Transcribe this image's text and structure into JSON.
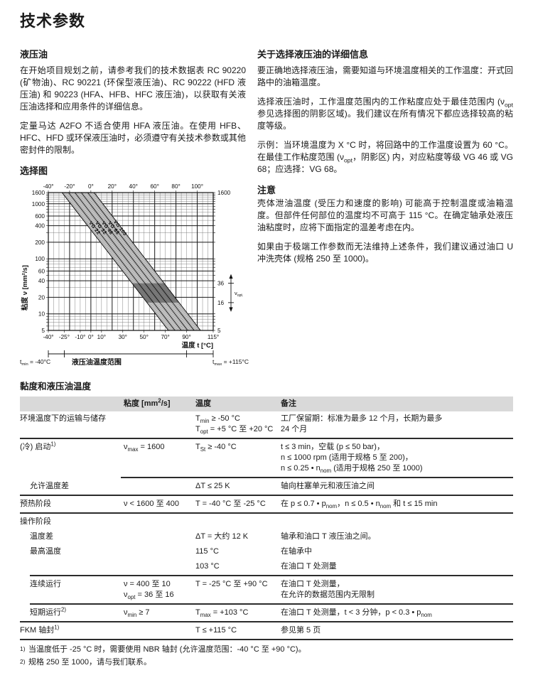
{
  "page": {
    "title": "技术参数"
  },
  "left": {
    "heading": "液压油",
    "para1": "在开始项目规划之前，请参考我们的技术数据表 RC 90220 (矿物油)、RC 90221 (环保型液压油)、RC 90222 (HFD 液压油) 和 90223 (HFA、HFB、HFC 液压油)，以获取有关液压油选择和应用条件的详细信息。",
    "para2": "定量马达 A2FO 不适合使用 HFA 液压油。在使用 HFB、HFC、HFD 或环保液压油时，必须遵守有关技术参数或其他密封件的限制。",
    "chart_heading": "选择图"
  },
  "right": {
    "heading": "关于选择液压油的详细信息",
    "para1": "要正确地选择液压油，需要知道与环境温度相关的工作温度：开式回路中的油箱温度。",
    "para2": "选择液压油时，工作温度范围内的工作粘度应处于最佳范围内 (ν~opt~ 参见选择图的阴影区域)。我们建议在所有情况下都应选择较高的粘度等级。",
    "para3": "示例：当环境温度为 X °C 时，将回路中的工作温度设置为 60 °C。在最佳工作粘度范围 (ν~opt~，阴影区) 内，对应粘度等级 VG 46 或 VG 68；应选择：VG 68。",
    "note_heading": "注意",
    "note1": "壳体泄油温度 (受压力和速度的影响) 可能高于控制温度或油箱温度。但部件任何部位的温度均不可高于 115 °C。在确定轴承处液压油粘度时，应将下面指定的温差考虑在内。",
    "note2": "如果由于极端工作参数而无法维持上述条件，我们建议通过油口 U 冲洗壳体 (规格 250 至 1000)。"
  },
  "chart_data": {
    "type": "line",
    "title": "选择图",
    "xlabel": "温度 t [°C]",
    "ylabel": "粘度 ν [mm²/s]",
    "x_range": [
      -40,
      115
    ],
    "y_range": [
      5,
      1600
    ],
    "top_ticks": [
      {
        "v": -40,
        "label": "-40°"
      },
      {
        "v": -20,
        "label": "-20°"
      },
      {
        "v": 0,
        "label": "0°"
      },
      {
        "v": 20,
        "label": "20°"
      },
      {
        "v": 40,
        "label": "40°"
      },
      {
        "v": 60,
        "label": "60°"
      },
      {
        "v": 80,
        "label": "80°"
      },
      {
        "v": 100,
        "label": "100°"
      }
    ],
    "bottom_ticks": [
      {
        "v": -40,
        "label": "-40°"
      },
      {
        "v": -25,
        "label": "-25°"
      },
      {
        "v": -10,
        "label": "-10°"
      },
      {
        "v": 0,
        "label": "0°"
      },
      {
        "v": 10,
        "label": "10°"
      },
      {
        "v": 30,
        "label": "30°"
      },
      {
        "v": 50,
        "label": "50°"
      },
      {
        "v": 70,
        "label": "70°"
      },
      {
        "v": 90,
        "label": "90°"
      },
      {
        "v": 115,
        "label": "115°"
      }
    ],
    "y_ticks": [
      {
        "v": 1600,
        "label": "1600"
      },
      {
        "v": 1000,
        "label": "1000"
      },
      {
        "v": 600,
        "label": "600"
      },
      {
        "v": 400,
        "label": "400"
      },
      {
        "v": 200,
        "label": "200"
      },
      {
        "v": 100,
        "label": "100"
      },
      {
        "v": 60,
        "label": "60"
      },
      {
        "v": 40,
        "label": "40"
      },
      {
        "v": 20,
        "label": "20"
      },
      {
        "v": 10,
        "label": "10"
      },
      {
        "v": 5,
        "label": "5"
      }
    ],
    "right_labels": [
      {
        "v": 1600,
        "label": "1600"
      },
      {
        "v": 5,
        "label": "5"
      }
    ],
    "vg_bands": {
      "t_start": -27,
      "band_width": 6,
      "count": 5,
      "t_run_full_scale": 100,
      "labels": [
        "VG 22",
        "VG 32",
        "VG 46",
        "VG 68",
        "VG 100"
      ],
      "label_at_viscosity": 350
    },
    "v_opt": {
      "upper": 36,
      "lower": 16,
      "label": "ν~opt.~"
    },
    "annotations": {
      "t_min": "t~min~ = -40°C",
      "range": "液压油温度范围",
      "t_max": "t~max~ = +115°C"
    }
  },
  "table": {
    "heading": "黏度和液压油温度",
    "columns": [
      "",
      "粘度 [mm^2^/s]",
      "温度",
      "备注"
    ],
    "rows": [
      {
        "label": "环境温度下的运输与储存",
        "visc": "",
        "temp": "T~min~ ≥ -50 °C\nT~opt~ = +5 °C 至 +20 °C",
        "remark": "工厂保留期：标准为最多 12 个月，长期为最多\n24 个月",
        "rule": "full"
      },
      {
        "label": "(冷) 启动^1)^",
        "visc": "ν~max~ = 1600",
        "temp": "T~St~ ≥ -40 °C",
        "remark": "t ≤ 3 min，空载 (p ≤ 50 bar)，\nn ≤ 1000 rpm (适用于规格 5 至 200)，\nn ≤ 0.25 • n~nom~ (适用于规格 250 至 1000)",
        "rule": "partial"
      },
      {
        "label": "允许温度差",
        "indent": true,
        "visc": "",
        "temp": "ΔT ≤ 25 K",
        "remark": "轴向柱塞单元和液压油之间",
        "rule": "full"
      },
      {
        "label": "预热阶段",
        "visc": "ν < 1600 至 400",
        "temp": "T = -40 °C 至 -25 °C",
        "remark": "在 p ≤ 0.7 • p~nom~，n ≤ 0.5 • n~nom~ 和 t ≤ 15 min",
        "rule": "full"
      },
      {
        "label": "操作阶段",
        "visc": "",
        "temp": "",
        "remark": "",
        "rule": null
      },
      {
        "label": "温度差",
        "indent": true,
        "visc": "",
        "temp": "ΔT = 大约 12 K",
        "remark": "轴承和油口 T 液压油之间。",
        "rule": null
      },
      {
        "label": "最高温度",
        "indent": true,
        "visc": "",
        "temp": "115 °C",
        "remark": "在轴承中",
        "rule": null
      },
      {
        "label": "",
        "visc": "",
        "temp": "103 °C",
        "remark": "在油口 T 处测量",
        "rule": "indent"
      },
      {
        "label": "连续运行",
        "indent": true,
        "visc": "ν = 400 至 10\nν~opt~ = 36 至 16",
        "temp": "T = -25 °C 至 +90 °C",
        "remark": "在油口 T 处测量，\n在允许的数据范围内无限制",
        "rule": "indent"
      },
      {
        "label": "短期运行^2)^",
        "indent": true,
        "visc": "ν~min~ ≥ 7",
        "temp": "T~max~ = +103 °C",
        "remark": "在油口 T 处测量，t < 3 分钟，p < 0.3 • p~nom~",
        "rule": "full"
      },
      {
        "label": "FKM 轴封^1)^",
        "visc": "",
        "temp": "T ≤ +115 °C",
        "remark": "参见第 5 页",
        "rule": "full"
      }
    ]
  },
  "footnotes": [
    {
      "marker": "1)",
      "text": "当温度低于 -25 °C 时，需要使用 NBR 轴封 (允许温度范围：-40 °C 至 +90 °C)。"
    },
    {
      "marker": "2)",
      "text": "规格 250 至 1000，请与我们联系。"
    }
  ]
}
